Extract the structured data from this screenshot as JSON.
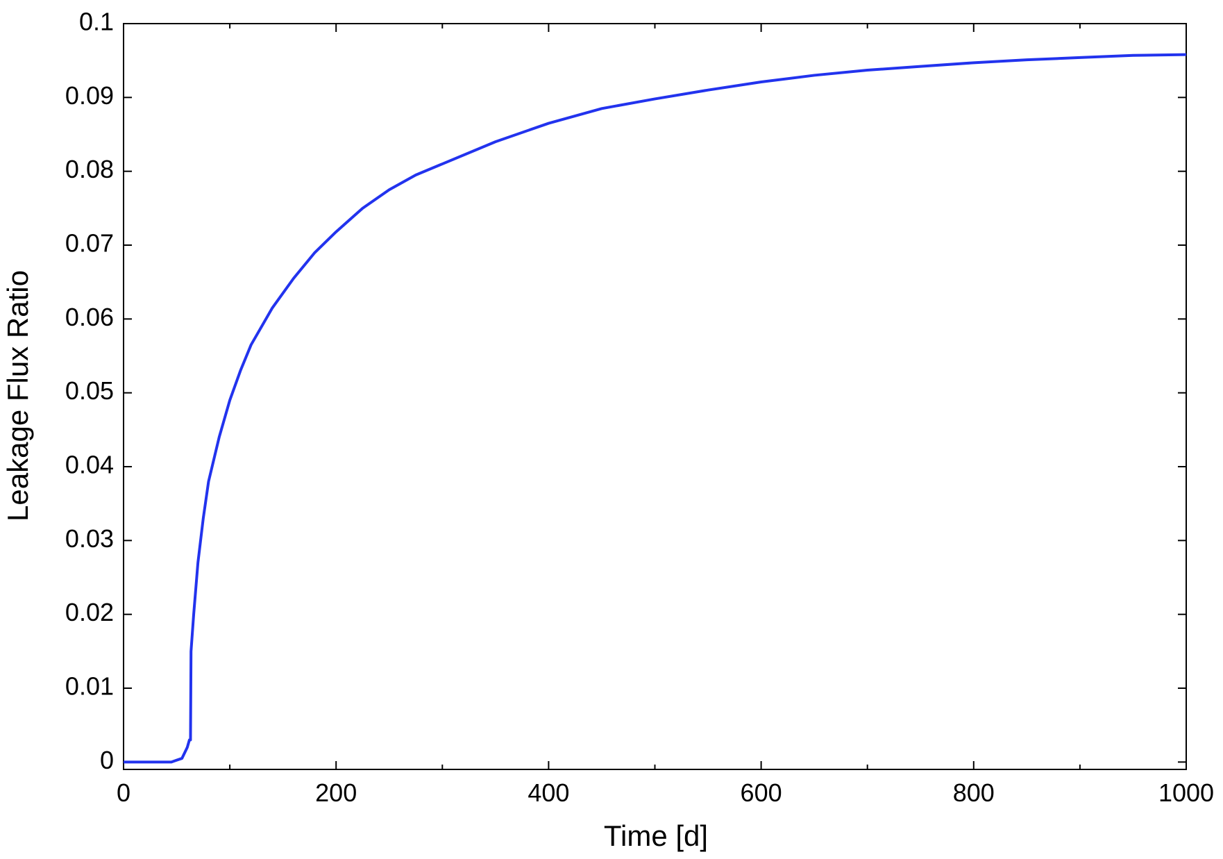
{
  "chart_data": {
    "type": "line",
    "xlabel": "Time [d]",
    "ylabel": "Leakage Flux Ratio",
    "x": [
      0,
      45,
      55,
      60,
      62,
      63,
      63.5,
      66,
      70,
      75,
      80,
      85,
      90,
      100,
      110,
      120,
      140,
      160,
      180,
      200,
      225,
      250,
      275,
      300,
      350,
      400,
      450,
      500,
      550,
      600,
      650,
      700,
      750,
      800,
      850,
      900,
      950,
      1000
    ],
    "series": [
      {
        "name": "Leakage Flux Ratio",
        "color": "#2233ee",
        "values": [
          0,
          0,
          0.0005,
          0.002,
          0.003,
          0.003,
          0.015,
          0.02,
          0.027,
          0.033,
          0.038,
          0.041,
          0.044,
          0.049,
          0.053,
          0.0565,
          0.0615,
          0.0655,
          0.069,
          0.0718,
          0.075,
          0.0775,
          0.0795,
          0.081,
          0.084,
          0.0865,
          0.0885,
          0.0898,
          0.091,
          0.0921,
          0.093,
          0.0937,
          0.0942,
          0.0947,
          0.0951,
          0.0954,
          0.0957,
          0.0958
        ]
      }
    ],
    "xlim": [
      0,
      1000
    ],
    "xticks": [
      0,
      200,
      400,
      600,
      800,
      1000
    ],
    "xminorticks": [
      100,
      300,
      500,
      700,
      900
    ],
    "ylim": [
      -0.001,
      0.1
    ],
    "yticks": [
      0,
      0.01,
      0.02,
      0.03,
      0.04,
      0.05,
      0.06,
      0.07,
      0.08,
      0.09,
      0.1
    ],
    "grid": false
  }
}
